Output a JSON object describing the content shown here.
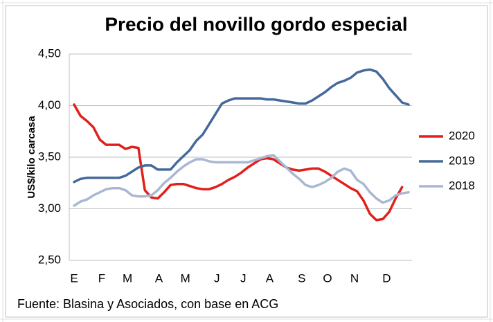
{
  "chart_data": {
    "type": "line",
    "title": "Precio del novillo gordo especial",
    "y_label": "US$/kilo carcasa",
    "source": "Fuente: Blasina y Asociados, con base en ACG",
    "x": [
      0,
      1,
      2,
      3,
      4,
      5,
      6,
      7,
      8,
      9,
      10,
      11,
      12,
      13,
      14,
      15,
      16,
      17,
      18,
      19,
      20,
      21,
      22,
      23,
      24,
      25,
      26,
      27,
      28,
      29,
      30,
      31,
      32,
      33,
      34,
      35,
      36,
      37,
      38,
      39,
      40,
      41,
      42,
      43,
      44,
      45,
      46,
      47,
      48,
      49,
      50,
      51,
      52
    ],
    "xlim": [
      0,
      52
    ],
    "xticks": [
      {
        "value": 0,
        "label": "E"
      },
      {
        "value": 4.3,
        "label": "F"
      },
      {
        "value": 8.3,
        "label": "M"
      },
      {
        "value": 13.2,
        "label": "A"
      },
      {
        "value": 17.3,
        "label": "M"
      },
      {
        "value": 22.2,
        "label": "J"
      },
      {
        "value": 26.3,
        "label": "J"
      },
      {
        "value": 30.4,
        "label": "A"
      },
      {
        "value": 35.4,
        "label": "S"
      },
      {
        "value": 39.4,
        "label": "O"
      },
      {
        "value": 43.6,
        "label": "N"
      },
      {
        "value": 48.6,
        "label": "D"
      }
    ],
    "ylim": [
      2.5,
      4.5
    ],
    "yticks": [
      {
        "value": 2.5,
        "label": "2,50"
      },
      {
        "value": 3,
        "label": "3,00"
      },
      {
        "value": 3.5,
        "label": "3,50"
      },
      {
        "value": 4,
        "label": "4,00"
      },
      {
        "value": 4.5,
        "label": "4,50"
      }
    ],
    "grid": true,
    "legend": "right",
    "series": [
      {
        "name": "2020",
        "color": "#e0201b",
        "values": [
          4.01,
          3.9,
          3.85,
          3.79,
          3.67,
          3.62,
          3.62,
          3.62,
          3.58,
          3.6,
          3.59,
          3.18,
          3.11,
          3.1,
          3.16,
          3.23,
          3.24,
          3.24,
          3.22,
          3.2,
          3.19,
          3.19,
          3.21,
          3.24,
          3.28,
          3.31,
          3.35,
          3.4,
          3.44,
          3.48,
          3.49,
          3.48,
          3.44,
          3.4,
          3.38,
          3.37,
          3.38,
          3.39,
          3.39,
          3.36,
          3.32,
          3.28,
          3.24,
          3.2,
          3.17,
          3.08,
          2.95,
          2.89,
          2.9,
          2.97,
          3.1,
          3.21,
          null
        ]
      },
      {
        "name": "2019",
        "color": "#44699a",
        "values": [
          3.26,
          3.29,
          3.3,
          3.3,
          3.3,
          3.3,
          3.3,
          3.3,
          3.32,
          3.36,
          3.4,
          3.42,
          3.42,
          3.38,
          3.38,
          3.38,
          3.45,
          3.51,
          3.57,
          3.66,
          3.72,
          3.82,
          3.92,
          4.02,
          4.05,
          4.07,
          4.07,
          4.07,
          4.07,
          4.07,
          4.06,
          4.06,
          4.05,
          4.04,
          4.03,
          4.02,
          4.02,
          4.05,
          4.09,
          4.13,
          4.18,
          4.22,
          4.24,
          4.27,
          4.32,
          4.34,
          4.35,
          4.33,
          4.26,
          4.17,
          4.1,
          4.03,
          4.01
        ]
      },
      {
        "name": "2018",
        "color": "#a9b7d3",
        "values": [
          3.03,
          3.07,
          3.09,
          3.13,
          3.16,
          3.19,
          3.2,
          3.2,
          3.18,
          3.13,
          3.12,
          3.12,
          3.13,
          3.18,
          3.25,
          3.3,
          3.36,
          3.41,
          3.45,
          3.48,
          3.48,
          3.46,
          3.45,
          3.45,
          3.45,
          3.45,
          3.45,
          3.45,
          3.47,
          3.49,
          3.51,
          3.52,
          3.46,
          3.4,
          3.34,
          3.29,
          3.23,
          3.21,
          3.23,
          3.26,
          3.3,
          3.36,
          3.39,
          3.37,
          3.28,
          3.24,
          3.16,
          3.1,
          3.06,
          3.08,
          3.13,
          3.15,
          3.16
        ]
      }
    ]
  }
}
